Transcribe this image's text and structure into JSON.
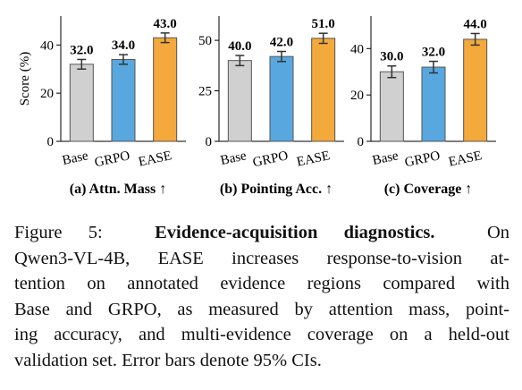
{
  "chart_data": [
    {
      "type": "bar",
      "subtitle": "(a) Attn. Mass ↑",
      "ylabel": "Score (%)",
      "categories": [
        "Base",
        "GRPO",
        "EASE"
      ],
      "values": [
        32,
        34,
        43
      ],
      "value_labels": [
        "32.0",
        "34.0",
        "43.0"
      ],
      "errors": [
        2,
        2,
        2
      ],
      "colors": [
        "#d0d0d0",
        "#58a8df",
        "#f4a93c"
      ],
      "ylim": [
        0,
        52
      ],
      "yticks": [
        0,
        20,
        40
      ]
    },
    {
      "type": "bar",
      "subtitle": "(b) Pointing Acc. ↑",
      "categories": [
        "Base",
        "GRPO",
        "EASE"
      ],
      "values": [
        40,
        42,
        51
      ],
      "value_labels": [
        "40.0",
        "42.0",
        "51.0"
      ],
      "errors": [
        2.5,
        2.5,
        2.5
      ],
      "colors": [
        "#d0d0d0",
        "#58a8df",
        "#f4a93c"
      ],
      "ylim": [
        0,
        62
      ],
      "yticks": [
        0,
        25,
        50
      ]
    },
    {
      "type": "bar",
      "subtitle": "(c) Coverage ↑",
      "categories": [
        "Base",
        "GRPO",
        "EASE"
      ],
      "values": [
        30,
        32,
        44
      ],
      "value_labels": [
        "30.0",
        "32.0",
        "44.0"
      ],
      "errors": [
        2.5,
        2.5,
        2.5
      ],
      "colors": [
        "#d0d0d0",
        "#58a8df",
        "#f4a93c"
      ],
      "ylim": [
        0,
        54
      ],
      "yticks": [
        0,
        20,
        40
      ]
    }
  ],
  "caption": {
    "label": "Figure 5:",
    "title": "Evidence-acquisition diagnostics.",
    "lines": [
      "On",
      "Qwen3-VL-4B, EASE increases response-to-vision at-",
      "tention on annotated evidence regions compared with",
      "Base and GRPO, as measured by attention mass, point-",
      "ing accuracy, and multi-evidence coverage on a held-out",
      "validation set. Error bars denote 95% CIs."
    ]
  }
}
